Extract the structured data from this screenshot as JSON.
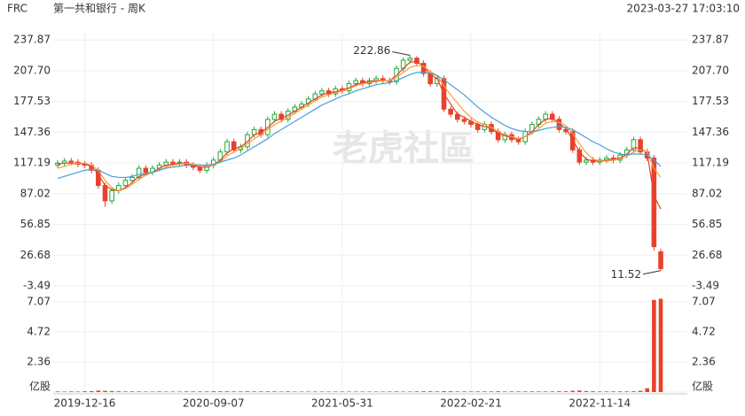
{
  "header": {
    "symbol": "FRC",
    "name": "第一共和银行 - 周K",
    "timestamp": "2023-03-27 17:03:10"
  },
  "watermark": "老虎社區",
  "chart_data": {
    "type": "candlestick",
    "categories": [
      null,
      null,
      null,
      null,
      "2019-12-16",
      null,
      null,
      null,
      null,
      null,
      null,
      null,
      null,
      null,
      null,
      null,
      null,
      null,
      null,
      null,
      null,
      null,
      null,
      "2020-09-07",
      null,
      null,
      null,
      null,
      null,
      null,
      null,
      null,
      null,
      null,
      null,
      null,
      null,
      null,
      null,
      null,
      null,
      null,
      "2021-05-31",
      null,
      null,
      null,
      null,
      null,
      null,
      null,
      null,
      null,
      null,
      null,
      null,
      null,
      null,
      null,
      null,
      null,
      null,
      "2022-02-21",
      null,
      null,
      null,
      null,
      null,
      null,
      null,
      null,
      null,
      null,
      null,
      null,
      null,
      null,
      null,
      null,
      null,
      null,
      "2022-11-14",
      null,
      null,
      null,
      null,
      null,
      null,
      null,
      null,
      null
    ],
    "open": [
      115,
      117,
      119,
      118,
      116,
      115,
      110,
      95,
      80,
      90,
      95,
      100,
      103,
      112,
      108,
      112,
      115,
      118,
      117,
      118,
      115,
      113,
      110,
      115,
      120,
      128,
      138,
      130,
      133,
      145,
      150,
      145,
      160,
      165,
      160,
      168,
      172,
      175,
      180,
      185,
      188,
      185,
      190,
      188,
      195,
      198,
      195,
      198,
      200,
      198,
      197,
      210,
      218,
      220,
      215,
      205,
      195,
      200,
      170,
      165,
      160,
      158,
      155,
      150,
      155,
      148,
      140,
      145,
      140,
      138,
      148,
      155,
      160,
      165,
      160,
      150,
      148,
      130,
      118,
      120,
      118,
      120,
      122,
      120,
      125,
      130,
      140,
      128,
      122,
      30
    ],
    "high": [
      120,
      122,
      122,
      121,
      119,
      118,
      113,
      98,
      93,
      98,
      103,
      106,
      115,
      115,
      115,
      118,
      121,
      121,
      121,
      121,
      118,
      116,
      118,
      123,
      131,
      141,
      141,
      136,
      148,
      153,
      153,
      163,
      168,
      168,
      171,
      175,
      178,
      183,
      188,
      191,
      191,
      193,
      193,
      198,
      201,
      201,
      201,
      203,
      203,
      201,
      213,
      221,
      222.86,
      222,
      218,
      208,
      203,
      203,
      173,
      168,
      163,
      161,
      158,
      158,
      158,
      151,
      148,
      148,
      143,
      151,
      158,
      163,
      168,
      168,
      163,
      153,
      151,
      133,
      123,
      123,
      123,
      125,
      125,
      128,
      133,
      143,
      143,
      131,
      125,
      33
    ],
    "low": [
      112,
      114,
      115,
      113,
      112,
      107,
      92,
      74,
      77,
      87,
      92,
      97,
      100,
      105,
      105,
      109,
      112,
      114,
      114,
      112,
      110,
      107,
      107,
      112,
      117,
      125,
      127,
      127,
      130,
      142,
      142,
      142,
      157,
      157,
      157,
      165,
      169,
      172,
      177,
      182,
      182,
      182,
      185,
      185,
      192,
      192,
      192,
      195,
      195,
      194,
      194,
      207,
      215,
      212,
      202,
      192,
      192,
      167,
      162,
      157,
      155,
      152,
      147,
      147,
      145,
      137,
      137,
      137,
      135,
      135,
      145,
      152,
      157,
      157,
      147,
      145,
      127,
      115,
      115,
      115,
      115,
      117,
      117,
      117,
      122,
      127,
      125,
      119,
      31,
      11.52
    ],
    "close": [
      117,
      119,
      118,
      116,
      115,
      110,
      95,
      80,
      90,
      95,
      100,
      103,
      112,
      108,
      112,
      115,
      118,
      117,
      118,
      115,
      113,
      110,
      115,
      120,
      128,
      138,
      130,
      133,
      145,
      150,
      145,
      160,
      165,
      160,
      168,
      172,
      175,
      180,
      185,
      188,
      185,
      190,
      188,
      195,
      198,
      195,
      198,
      200,
      198,
      197,
      210,
      218,
      220,
      215,
      205,
      195,
      200,
      170,
      165,
      160,
      158,
      155,
      150,
      155,
      148,
      140,
      145,
      140,
      138,
      148,
      155,
      160,
      165,
      160,
      150,
      148,
      130,
      118,
      120,
      118,
      120,
      122,
      120,
      125,
      130,
      140,
      128,
      122,
      35,
      13.5
    ],
    "up_color": "#22a83a",
    "down_color": "#e8412c",
    "series": [
      {
        "color": "#e8412c",
        "values": [
          116,
          117,
          117,
          117,
          116,
          114,
          106,
          95,
          91,
          90,
          93,
          98,
          104,
          106,
          108,
          112,
          115,
          116,
          117,
          117,
          115,
          113,
          113,
          115,
          120,
          127,
          131,
          133,
          138,
          145,
          147,
          152,
          158,
          161,
          164,
          168,
          172,
          176,
          180,
          184,
          186,
          187,
          189,
          191,
          194,
          196,
          197,
          198,
          198,
          198,
          203,
          210,
          216,
          217,
          212,
          204,
          200,
          185,
          175,
          165,
          162,
          158,
          155,
          153,
          151,
          146,
          144,
          142,
          140,
          143,
          148,
          155,
          160,
          161,
          156,
          151,
          140,
          128,
          121,
          119,
          119,
          120,
          121,
          122,
          126,
          132,
          132,
          127,
          85,
          72
        ]
      },
      {
        "color": "#f5a03c",
        "values": [
          112,
          114,
          116,
          117,
          117,
          115,
          110,
          100,
          93,
          90,
          92,
          96,
          101,
          105,
          108,
          110,
          113,
          115,
          116,
          117,
          116,
          115,
          114,
          115,
          118,
          124,
          128,
          131,
          136,
          141,
          145,
          150,
          155,
          158,
          162,
          166,
          170,
          174,
          178,
          182,
          184,
          186,
          188,
          190,
          193,
          195,
          196,
          197,
          198,
          198,
          201,
          206,
          211,
          213,
          212,
          207,
          203,
          193,
          184,
          176,
          168,
          162,
          157,
          155,
          152,
          148,
          145,
          143,
          141,
          143,
          146,
          151,
          156,
          158,
          157,
          154,
          146,
          136,
          127,
          121,
          119,
          119,
          120,
          121,
          124,
          128,
          130,
          128,
          112,
          103
        ]
      },
      {
        "color": "#4a9fd8",
        "values": [
          102,
          104,
          106,
          108,
          110,
          111,
          110,
          107,
          104,
          103,
          103,
          104,
          106,
          107,
          108,
          110,
          112,
          113,
          114,
          115,
          115,
          115,
          115,
          116,
          118,
          120,
          122,
          125,
          129,
          133,
          137,
          141,
          146,
          150,
          154,
          158,
          162,
          166,
          170,
          174,
          177,
          180,
          183,
          185,
          188,
          190,
          192,
          194,
          195,
          196,
          198,
          201,
          204,
          206,
          206,
          205,
          203,
          199,
          194,
          189,
          184,
          178,
          172,
          167,
          162,
          158,
          154,
          151,
          149,
          148,
          148,
          149,
          151,
          152,
          153,
          152,
          150,
          146,
          142,
          138,
          135,
          131,
          128,
          126,
          125,
          126,
          126,
          125,
          120,
          114
        ]
      }
    ],
    "ylim": [
      -3.49,
      245
    ],
    "yticks": [
      -3.49,
      26.68,
      56.85,
      87.02,
      117.19,
      147.36,
      177.53,
      {
        "value": 207.7,
        "label": "207.70"
      },
      237.87
    ],
    "grid": true,
    "volume": {
      "values": [
        0.05,
        0.04,
        0.05,
        0.04,
        0.06,
        0.07,
        0.12,
        0.1,
        0.08,
        0.06,
        0.05,
        0.05,
        0.05,
        0.04,
        0.04,
        0.05,
        0.04,
        0.04,
        0.04,
        0.05,
        0.05,
        0.05,
        0.05,
        0.06,
        0.06,
        0.06,
        0.05,
        0.05,
        0.06,
        0.05,
        0.05,
        0.05,
        0.05,
        0.04,
        0.05,
        0.04,
        0.04,
        0.04,
        0.04,
        0.04,
        0.04,
        0.04,
        0.04,
        0.04,
        0.04,
        0.04,
        0.04,
        0.04,
        0.04,
        0.04,
        0.05,
        0.04,
        0.04,
        0.05,
        0.06,
        0.06,
        0.05,
        0.07,
        0.06,
        0.05,
        0.05,
        0.05,
        0.05,
        0.05,
        0.05,
        0.06,
        0.05,
        0.05,
        0.05,
        0.05,
        0.05,
        0.05,
        0.05,
        0.05,
        0.06,
        0.06,
        0.1,
        0.12,
        0.08,
        0.06,
        0.05,
        0.05,
        0.05,
        0.05,
        0.05,
        0.06,
        0.1,
        0.3,
        7.2,
        7.3
      ],
      "ylim": [
        0,
        7.4
      ],
      "yticks": [
        {
          "value": 0,
          "label": "亿股"
        },
        2.36,
        4.72,
        7.07
      ]
    }
  }
}
